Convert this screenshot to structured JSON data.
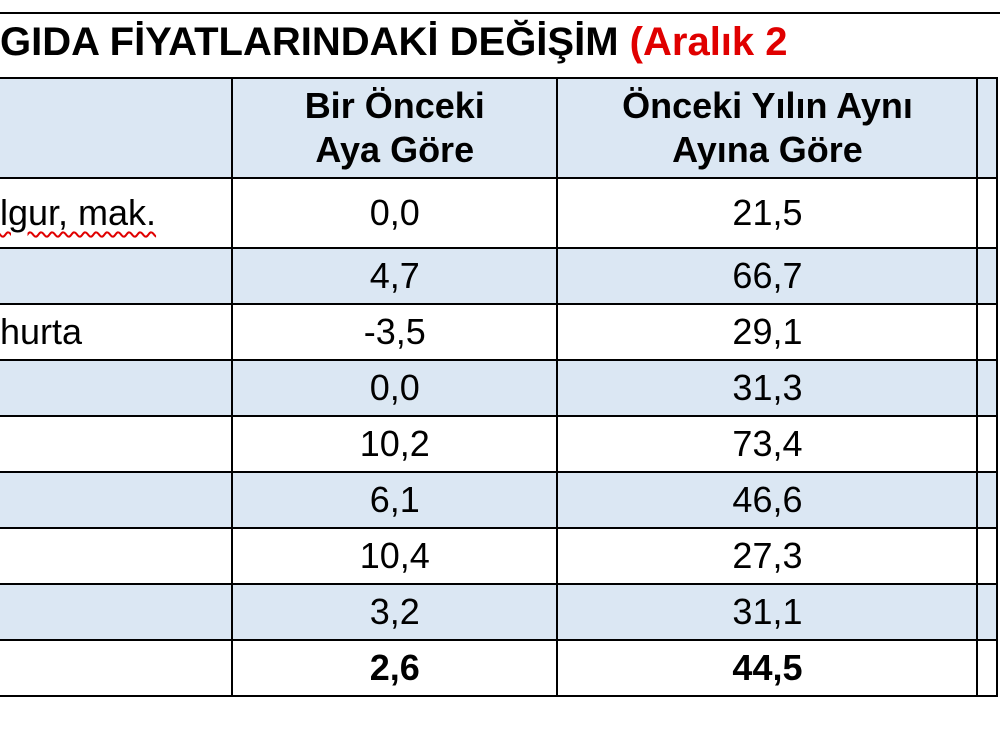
{
  "title": {
    "main": "GIDA FİYATLARINDAKİ DEĞİŞİM",
    "highlight": "(Aralık 2"
  },
  "table": {
    "headers": [
      "",
      "Bir Önceki\nAya Göre",
      "Önceki Yılın Aynı\nAyına Göre"
    ],
    "rows": [
      {
        "label": "lgur, mak.",
        "monthly": "0,0",
        "yearly": "21,5"
      },
      {
        "label": "",
        "monthly": "4,7",
        "yearly": "66,7"
      },
      {
        "label": "hurta",
        "monthly": "-3,5",
        "yearly": "29,1"
      },
      {
        "label": "",
        "monthly": "0,0",
        "yearly": "31,3"
      },
      {
        "label": "",
        "monthly": "10,2",
        "yearly": "73,4"
      },
      {
        "label": "",
        "monthly": "6,1",
        "yearly": "46,6"
      },
      {
        "label": "",
        "monthly": "10,4",
        "yearly": "27,3"
      },
      {
        "label": "",
        "monthly": "3,2",
        "yearly": "31,1"
      },
      {
        "label": "",
        "monthly": "2,6",
        "yearly": "44,5"
      }
    ]
  },
  "colors": {
    "header_bg": "#dbe7f3",
    "highlight": "#e00000",
    "border": "#000000"
  }
}
